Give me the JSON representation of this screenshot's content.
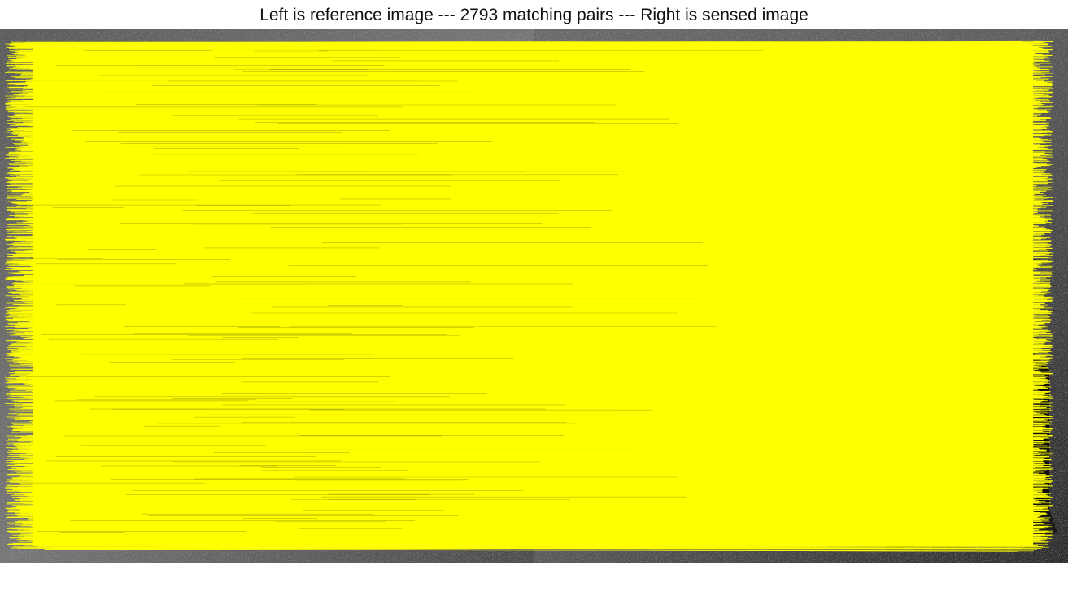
{
  "figure": {
    "title": "Left is reference image --- 2793 matching pairs --- Right is sensed image"
  },
  "visual": {
    "match_line_color": "#ffff00",
    "background_tone": "grayscale aerial imagery",
    "pair_count": 2793
  }
}
